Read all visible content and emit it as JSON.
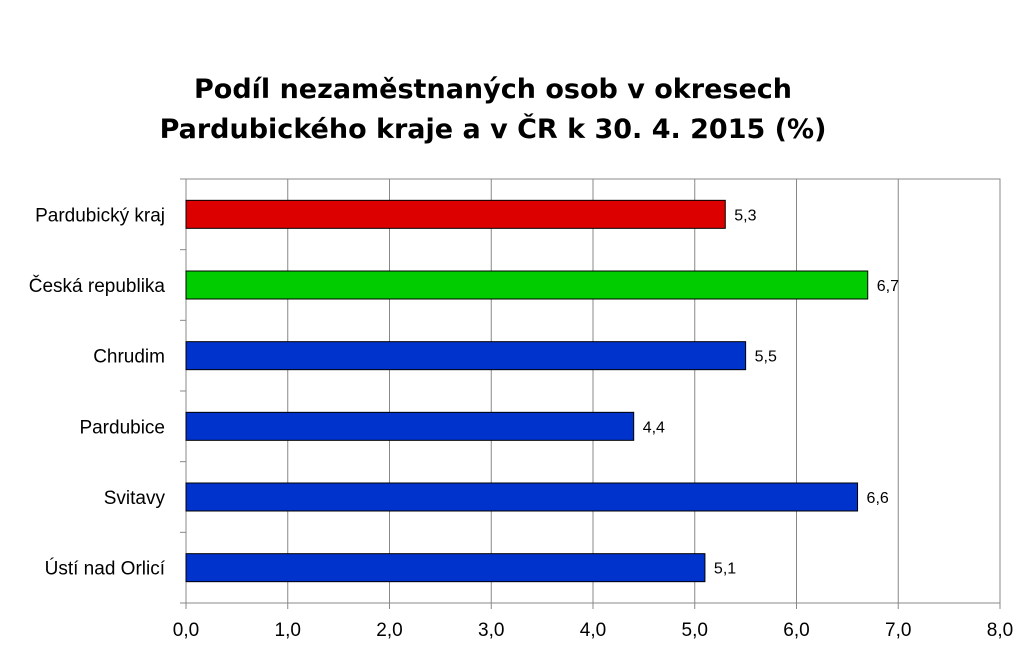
{
  "chart_data": {
    "type": "bar",
    "orientation": "horizontal",
    "title_lines": [
      "Podíl nezaměstnaných osob v okresech",
      "Pardubického kraje a v ČR k 30. 4. 2015 (%)"
    ],
    "categories": [
      "Pardubický kraj",
      "Česká republika",
      "Chrudim",
      "Pardubice",
      "Svitavy",
      "Ústí nad Orlicí"
    ],
    "values": [
      5.3,
      6.7,
      5.5,
      4.4,
      6.6,
      5.1
    ],
    "value_labels": [
      "5,3",
      "6,7",
      "5,5",
      "4,4",
      "6,6",
      "5,1"
    ],
    "bar_colors": [
      "#dd0000",
      "#00cc00",
      "#0033cc",
      "#0033cc",
      "#0033cc",
      "#0033cc"
    ],
    "xlim": [
      0,
      8
    ],
    "x_ticks": [
      0,
      1,
      2,
      3,
      4,
      5,
      6,
      7,
      8
    ],
    "x_tick_labels": [
      "0,0",
      "1,0",
      "2,0",
      "3,0",
      "4,0",
      "5,0",
      "6,0",
      "7,0",
      "8,0"
    ],
    "grid": "vertical",
    "legend": "none",
    "xlabel": "",
    "ylabel": ""
  }
}
